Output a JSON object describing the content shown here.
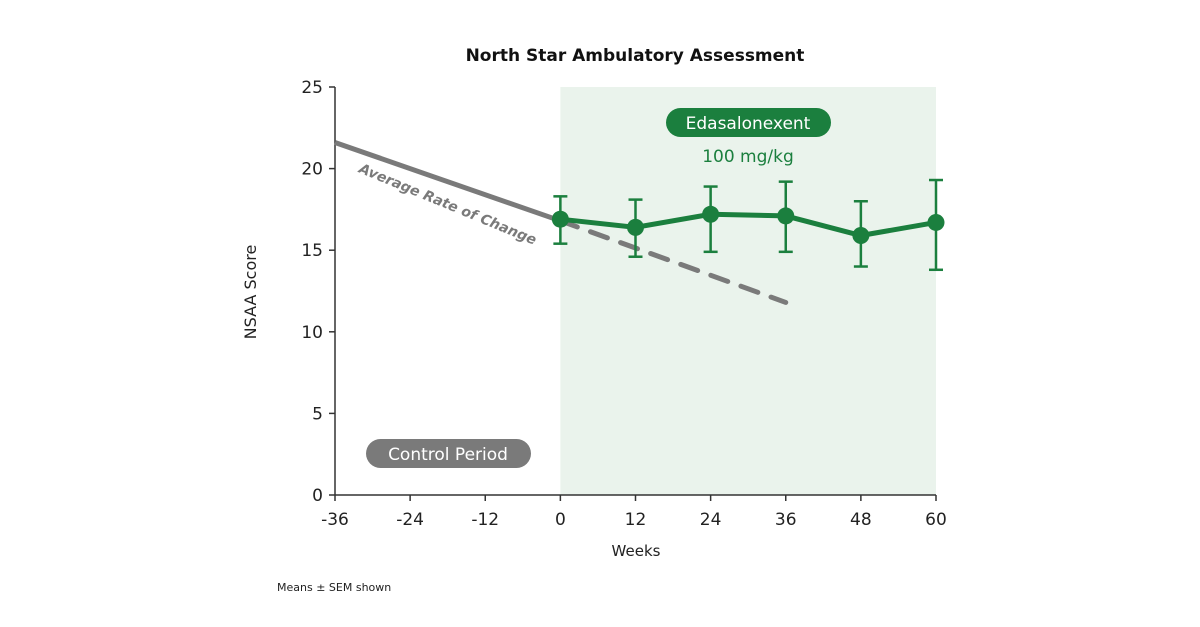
{
  "chart_data": {
    "type": "line",
    "title": "North Star Ambulatory Assessment",
    "xlabel": "Weeks",
    "ylabel": "NSAA Score",
    "xlim": [
      -36,
      60
    ],
    "ylim": [
      0,
      25
    ],
    "xticks": [
      -36,
      -24,
      -12,
      0,
      12,
      24,
      36,
      48,
      60
    ],
    "yticks": [
      0,
      5,
      10,
      15,
      20,
      25
    ],
    "grid": false,
    "treatment_period": {
      "label": "Edasalonexent",
      "sublabel": "100 mg/kg",
      "x_range": [
        0,
        60
      ]
    },
    "control_period": {
      "label": "Control Period"
    },
    "series": [
      {
        "name": "Edasalonexent",
        "color": "#1b7f3e",
        "x": [
          0,
          12,
          24,
          36,
          48,
          60
        ],
        "y": [
          16.9,
          16.4,
          17.2,
          17.1,
          15.9,
          16.7
        ],
        "error_upper": [
          18.3,
          18.1,
          18.9,
          19.2,
          18.0,
          19.3
        ],
        "error_lower": [
          15.4,
          14.6,
          14.9,
          14.9,
          14.0,
          13.8
        ]
      },
      {
        "name": "Average Rate of Change",
        "color": "#7a7a7a",
        "solid": {
          "x": [
            -36,
            0
          ],
          "y": [
            21.6,
            16.8
          ]
        },
        "projected": {
          "x": [
            0,
            36
          ],
          "y": [
            16.8,
            11.8
          ]
        }
      }
    ],
    "footnote": "Means ± SEM shown"
  },
  "colors": {
    "green": "#1b7f3e",
    "shade": "#eaf3ec",
    "gray": "#7a7a7a"
  }
}
